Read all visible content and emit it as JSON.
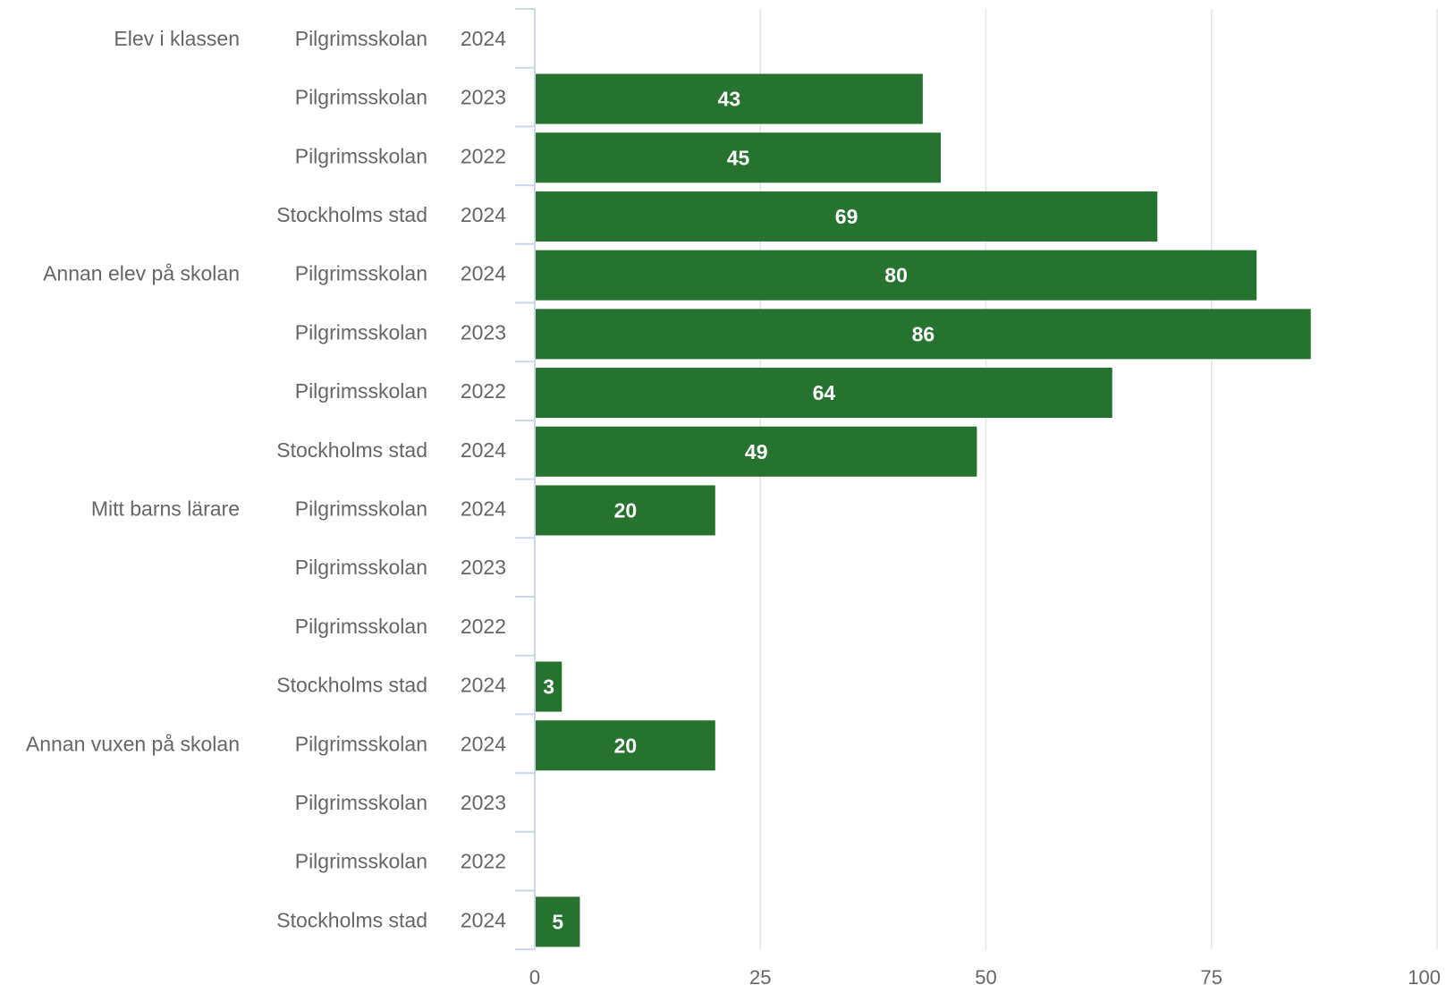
{
  "chart_data": {
    "type": "bar",
    "orientation": "horizontal",
    "grid": true,
    "xlim": [
      0,
      100
    ],
    "xticks": [
      0,
      25,
      50,
      75,
      100
    ],
    "colors": {
      "bar": "#267330",
      "bar_label": "#ffffff",
      "axis_text": "#666666",
      "grid": "#e6e6e6",
      "axis_line": "#ccd6eb"
    },
    "rows": [
      {
        "group": "Elev i klassen",
        "entity": "Pilgrimsskolan",
        "year": "2024",
        "value": null,
        "label": ""
      },
      {
        "group": "",
        "entity": "Pilgrimsskolan",
        "year": "2023",
        "value": 43,
        "label": "43"
      },
      {
        "group": "",
        "entity": "Pilgrimsskolan",
        "year": "2022",
        "value": 45,
        "label": "45"
      },
      {
        "group": "",
        "entity": "Stockholms stad",
        "year": "2024",
        "value": 69,
        "label": "69"
      },
      {
        "group": "Annan elev på skolan",
        "entity": "Pilgrimsskolan",
        "year": "2024",
        "value": 80,
        "label": "80"
      },
      {
        "group": "",
        "entity": "Pilgrimsskolan",
        "year": "2023",
        "value": 86,
        "label": "86"
      },
      {
        "group": "",
        "entity": "Pilgrimsskolan",
        "year": "2022",
        "value": 64,
        "label": "64"
      },
      {
        "group": "",
        "entity": "Stockholms stad",
        "year": "2024",
        "value": 49,
        "label": "49"
      },
      {
        "group": "Mitt barns lärare",
        "entity": "Pilgrimsskolan",
        "year": "2024",
        "value": 20,
        "label": "20"
      },
      {
        "group": "",
        "entity": "Pilgrimsskolan",
        "year": "2023",
        "value": null,
        "label": ""
      },
      {
        "group": "",
        "entity": "Pilgrimsskolan",
        "year": "2022",
        "value": null,
        "label": ""
      },
      {
        "group": "",
        "entity": "Stockholms stad",
        "year": "2024",
        "value": 3,
        "label": "3"
      },
      {
        "group": "Annan vuxen på skolan",
        "entity": "Pilgrimsskolan",
        "year": "2024",
        "value": 20,
        "label": "20"
      },
      {
        "group": "",
        "entity": "Pilgrimsskolan",
        "year": "2023",
        "value": null,
        "label": ""
      },
      {
        "group": "",
        "entity": "Pilgrimsskolan",
        "year": "2022",
        "value": null,
        "label": ""
      },
      {
        "group": "",
        "entity": "Stockholms stad",
        "year": "2024",
        "value": 5,
        "label": "5"
      }
    ]
  }
}
